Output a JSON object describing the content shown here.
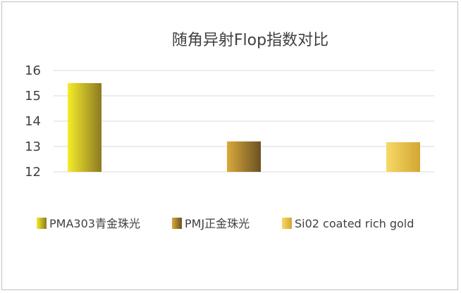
{
  "chart_data": {
    "type": "bar",
    "title": "随角异射Flop指数对比",
    "xlabel": "",
    "ylabel": "",
    "ylim": [
      12,
      16
    ],
    "yticks": [
      12,
      13,
      14,
      15,
      16
    ],
    "grid": true,
    "legend_position": "bottom",
    "series": [
      {
        "name": "PMA303青金珠光",
        "value": 15.5,
        "gradient": [
          "#f5ec2a",
          "#8c7a22"
        ]
      },
      {
        "name": "PMJ正金珠光",
        "value": 13.2,
        "gradient": [
          "#d9a93c",
          "#6b5220"
        ]
      },
      {
        "name": "Si02 coated rich gold",
        "value": 13.17,
        "gradient": [
          "#f7d966",
          "#d3a632"
        ]
      }
    ]
  }
}
